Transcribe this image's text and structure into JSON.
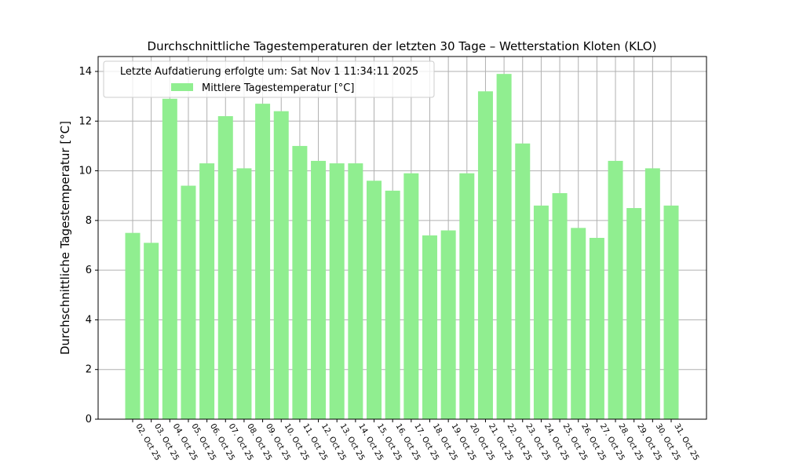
{
  "chart_data": {
    "type": "bar",
    "title": "Durchschnittliche Tagestemperaturen der letzten 30 Tage – Wetterstation Kloten (KLO)",
    "xlabel": "",
    "ylabel": "Durchschnittliche Tagestemperatur [°C]",
    "ylim": [
      0,
      14.6
    ],
    "yticks": [
      0,
      2,
      4,
      6,
      8,
      10,
      12,
      14
    ],
    "grid": true,
    "legend": {
      "placement": "top-left",
      "title": "Letzte Aufdatierung erfolgte um: Sat Nov  1 11:34:11 2025",
      "entries": [
        "Mittlere Tagestemperatur [°C]"
      ]
    },
    "bar_color": "#90ee90",
    "categories": [
      "02. Oct 25",
      "03. Oct 25",
      "04. Oct 25",
      "05. Oct 25",
      "06. Oct 25",
      "07. Oct 25",
      "08. Oct 25",
      "09. Oct 25",
      "10. Oct 25",
      "11. Oct 25",
      "12. Oct 25",
      "13. Oct 25",
      "14. Oct 25",
      "15. Oct 25",
      "16. Oct 25",
      "17. Oct 25",
      "18. Oct 25",
      "19. Oct 25",
      "20. Oct 25",
      "21. Oct 25",
      "22. Oct 25",
      "23. Oct 25",
      "24. Oct 25",
      "25. Oct 25",
      "26. Oct 25",
      "27. Oct 25",
      "28. Oct 25",
      "29. Oct 25",
      "30. Oct 25",
      "31. Oct 25"
    ],
    "series": [
      {
        "name": "Mittlere Tagestemperatur [°C]",
        "values": [
          7.5,
          7.1,
          12.9,
          9.4,
          10.3,
          12.2,
          10.1,
          12.7,
          12.4,
          11.0,
          10.4,
          10.3,
          10.3,
          9.6,
          9.2,
          9.9,
          7.4,
          7.6,
          9.9,
          13.2,
          13.9,
          11.1,
          8.6,
          9.1,
          7.7,
          7.3,
          10.4,
          8.5,
          10.1,
          8.6
        ]
      }
    ]
  }
}
